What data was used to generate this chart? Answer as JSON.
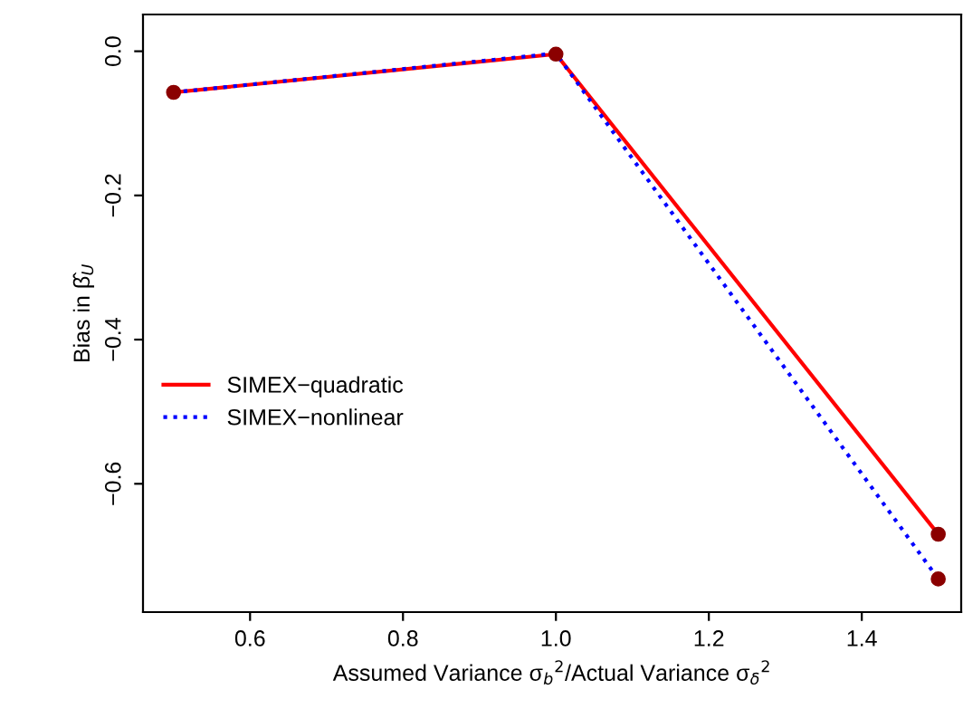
{
  "chart_data": {
    "type": "line",
    "xlabel": "Assumed Variance σ$_{b}$$^{2}$/Actual Variance σ$_{δ}$$^{2}$",
    "ylabel": "Bias in β̂$_{U}$",
    "x": [
      0.5,
      1.0,
      1.5
    ],
    "series": [
      {
        "name": "SIMEX−quadratic",
        "color": "#ff0000",
        "line_style": "solid",
        "values": [
          -0.057,
          -0.004,
          -0.67
        ]
      },
      {
        "name": "SIMEX−nonlinear",
        "color": "#0000ff",
        "line_style": "dotted",
        "values": [
          -0.057,
          -0.003,
          -0.732
        ]
      },
      {
        "type": "scatter",
        "color": "#8b0000",
        "marker": "circle",
        "x": [
          0.5,
          1.0,
          1.5,
          1.5
        ],
        "values": [
          -0.057,
          -0.004,
          -0.67,
          -0.732
        ]
      }
    ],
    "xlim": [
      0.46,
      1.53
    ],
    "ylim": [
      -0.778,
      0.051
    ],
    "xticks": [
      0.6,
      0.8,
      {
        "value": 1.0,
        "label": "1.0"
      },
      1.2,
      1.4
    ],
    "yticks": [
      {
        "value": 0.0,
        "label": "0.0"
      },
      {
        "value": -0.2,
        "label": "−0.2"
      },
      {
        "value": -0.4,
        "label": "−0.4"
      },
      {
        "value": -0.6,
        "label": "−0.6"
      }
    ],
    "grid": false,
    "legend": "left"
  }
}
